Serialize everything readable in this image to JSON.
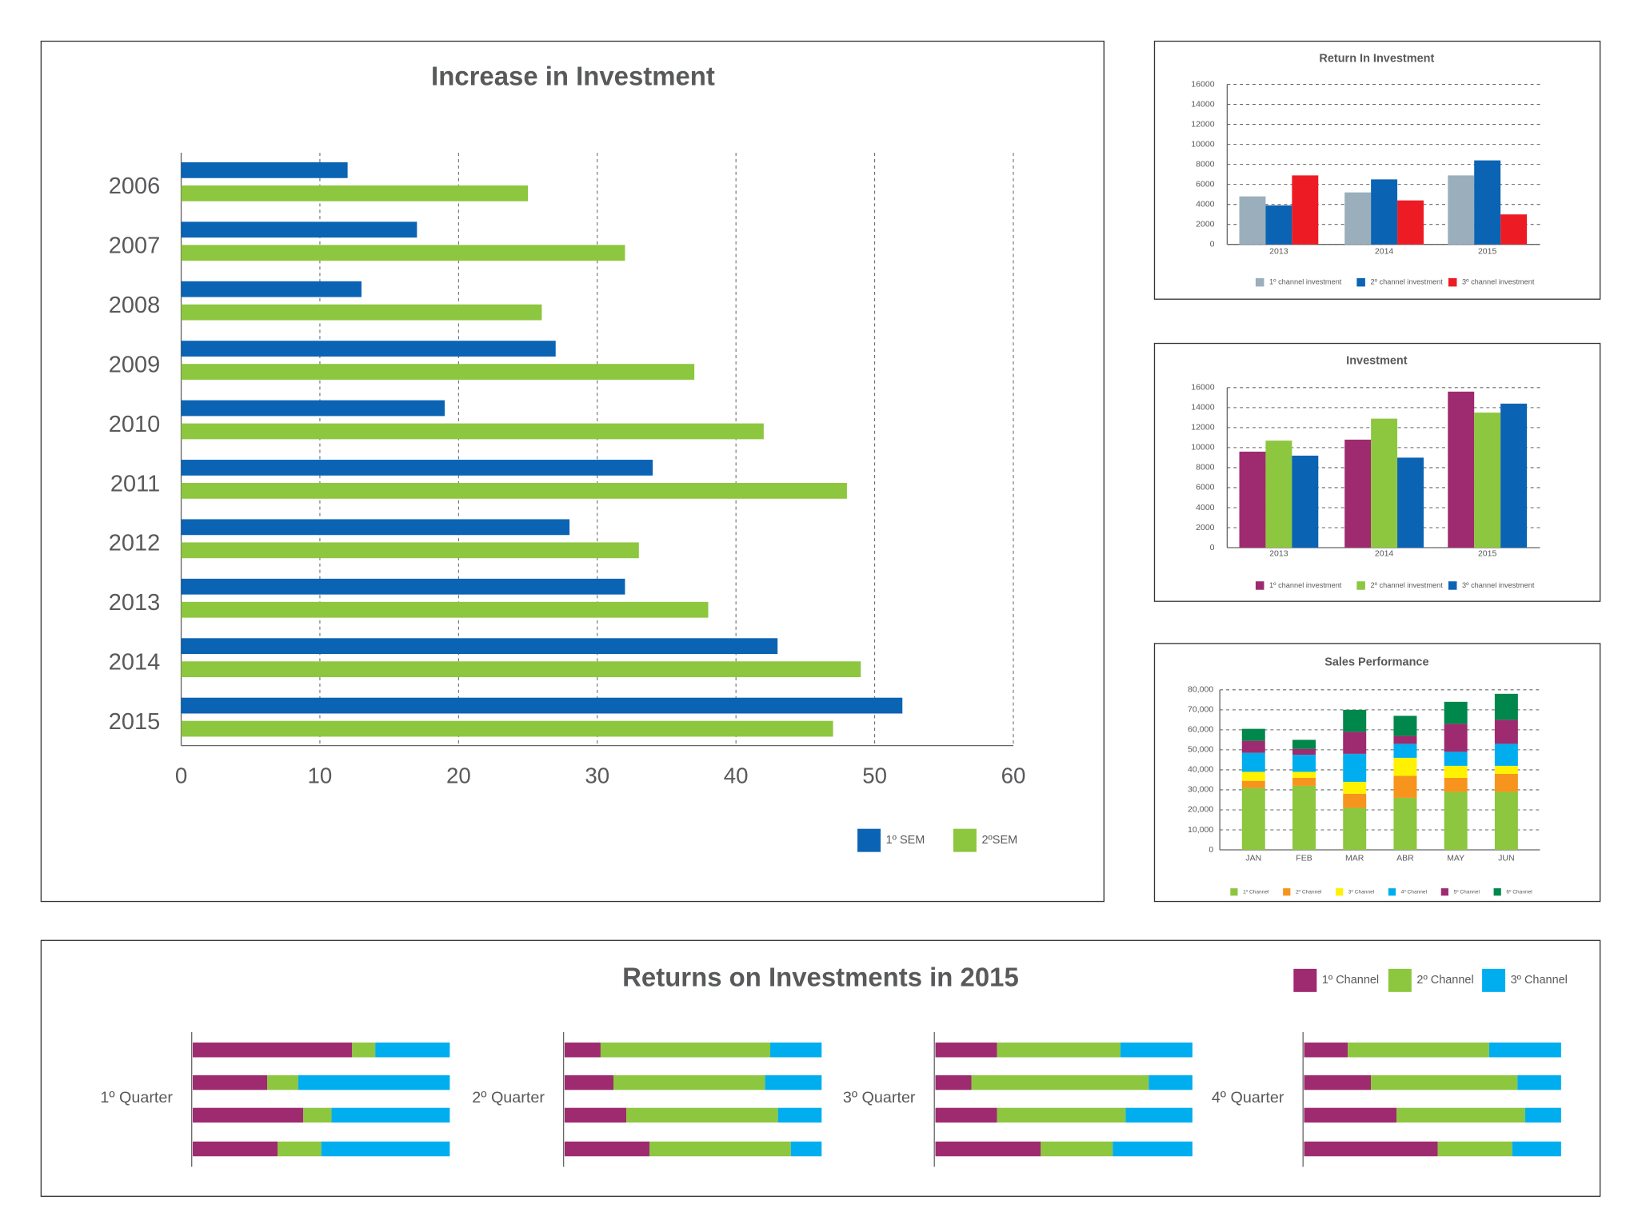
{
  "chart_data": [
    {
      "type": "hbar",
      "title": "Increase in Investment",
      "categories": [
        "2006",
        "2007",
        "2008",
        "2009",
        "2010",
        "2011",
        "2012",
        "2013",
        "2014",
        "2015"
      ],
      "series": [
        {
          "name": "1º SEM",
          "color": "#0b63b4",
          "values": [
            12,
            17,
            13,
            27,
            19,
            34,
            28,
            32,
            43,
            52
          ]
        },
        {
          "name": "2ºSEM",
          "color": "#8dc63f",
          "values": [
            25,
            32,
            26,
            37,
            42,
            48,
            33,
            38,
            49,
            47
          ]
        }
      ],
      "xlim": [
        0,
        60
      ],
      "xticks": [
        0,
        10,
        20,
        30,
        40,
        50,
        60
      ],
      "grid": true
    },
    {
      "type": "bar",
      "title": "Return In Investment",
      "categories": [
        "2013",
        "2014",
        "2015"
      ],
      "series": [
        {
          "name": "1º channel investment",
          "color": "#9aafbb",
          "values": [
            4800,
            5200,
            6900
          ]
        },
        {
          "name": "2º channel investment",
          "color": "#0b63b4",
          "values": [
            3900,
            6500,
            8400
          ]
        },
        {
          "name": "3º channel investment",
          "color": "#ed1c24",
          "values": [
            6900,
            4400,
            3000
          ]
        }
      ],
      "ylim": [
        0,
        16000
      ],
      "yticks": [
        0,
        2000,
        4000,
        6000,
        8000,
        10000,
        12000,
        14000,
        16000
      ],
      "grid": true
    },
    {
      "type": "bar",
      "title": "Investment",
      "categories": [
        "2013",
        "2014",
        "2015"
      ],
      "series": [
        {
          "name": "1º channel investment",
          "color": "#9e2a6f",
          "values": [
            9600,
            10800,
            15600
          ]
        },
        {
          "name": "2º channel investment",
          "color": "#8dc63f",
          "values": [
            10700,
            12900,
            13500
          ]
        },
        {
          "name": "3º channel investment",
          "color": "#0b63b4",
          "values": [
            9200,
            9000,
            14400
          ]
        }
      ],
      "ylim": [
        0,
        16000
      ],
      "yticks": [
        0,
        2000,
        4000,
        6000,
        8000,
        10000,
        12000,
        14000,
        16000
      ],
      "grid": true
    },
    {
      "type": "stacked_bar",
      "title": "Sales Performance",
      "categories": [
        "JAN",
        "FEB",
        "MAR",
        "ABR",
        "MAY",
        "JUN"
      ],
      "series": [
        {
          "name": "1º Channel",
          "color": "#8dc63f",
          "values": [
            31000,
            32000,
            21000,
            26000,
            29000,
            29000
          ]
        },
        {
          "name": "2º Channel",
          "color": "#f7941d",
          "values": [
            3500,
            4000,
            7000,
            11000,
            7000,
            9000
          ]
        },
        {
          "name": "3º Channel",
          "color": "#fff200",
          "values": [
            4500,
            3000,
            6000,
            9000,
            6000,
            4000
          ]
        },
        {
          "name": "4º Channel",
          "color": "#00aeef",
          "values": [
            9500,
            8500,
            14000,
            7000,
            7000,
            11000
          ]
        },
        {
          "name": "5º Channel",
          "color": "#9e2a6f",
          "values": [
            6000,
            3000,
            11000,
            4000,
            14000,
            12000
          ]
        },
        {
          "name": "6º Channel",
          "color": "#00874b",
          "values": [
            6000,
            4500,
            11000,
            10000,
            11000,
            13000
          ]
        }
      ],
      "ylim": [
        0,
        80000
      ],
      "yticks": [
        0,
        {
          "value": 10000,
          "label": "10,000"
        },
        {
          "value": 20000,
          "label": "20,000"
        },
        {
          "value": 30000,
          "label": "30,000"
        },
        {
          "value": 40000,
          "label": "40,000"
        },
        {
          "value": 50000,
          "label": "50,000"
        },
        {
          "value": 60000,
          "label": "60,000"
        },
        {
          "value": 70000,
          "label": "70,000"
        },
        {
          "value": 80000,
          "label": "80,000"
        }
      ],
      "grid": true
    },
    {
      "type": "stacked_bar_100",
      "title": "Returns on Investments in 2015",
      "categories": [
        "1º Quarter",
        "2º Quarter",
        "3º Quarter",
        "4º Quarter"
      ],
      "series": [
        {
          "name": "1º Channel",
          "color": "#9e2a6f",
          "values": [
            [
              62,
              29,
              43,
              33
            ],
            [
              14,
              19,
              24,
              33
            ],
            [
              24,
              14,
              24,
              41
            ],
            [
              17,
              26,
              36,
              52
            ]
          ]
        },
        {
          "name": "2º Channel",
          "color": "#8dc63f",
          "values": [
            [
              9,
              12,
              11,
              17
            ],
            [
              66,
              59,
              59,
              55
            ],
            [
              48,
              69,
              50,
              28
            ],
            [
              55,
              57,
              50,
              29
            ]
          ]
        },
        {
          "name": "3º Channel",
          "color": "#00aeef",
          "values": [
            [
              29,
              59,
              46,
              50
            ],
            [
              20,
              22,
              17,
              12
            ],
            [
              28,
              17,
              26,
              31
            ],
            [
              28,
              17,
              14,
              19
            ]
          ]
        }
      ]
    }
  ]
}
